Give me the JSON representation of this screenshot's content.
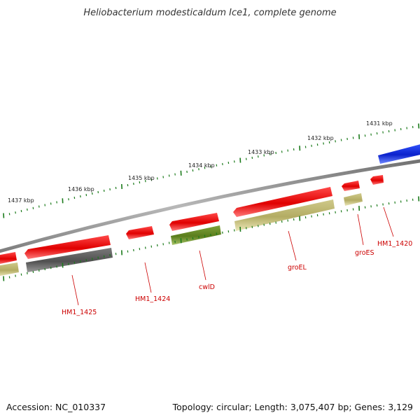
{
  "title": "Heliobacterium modesticaldum Ice1, complete genome",
  "footer": {
    "accession": "Accession: NC_010337",
    "summary": "Topology: circular; Length: 3,075,407 bp; Genes: 3,129"
  },
  "kbp_labels": [
    "1431 kbp",
    "1432 kbp",
    "1433 kbp",
    "1434 kbp",
    "1435 kbp",
    "1436 kbp",
    "1437 kbp"
  ],
  "gene_labels": [
    "HM1_1420",
    "groES",
    "groEL",
    "cwlD",
    "HM1_1424",
    "HM1_1425"
  ],
  "colors": {
    "backbone": "#8a8a8a",
    "tick": "#1a7a1a",
    "red_gene": "#ee1111",
    "blue_gene": "#1133dd",
    "khaki_gene": "#bdb76b",
    "olive_gene": "#6b8e23",
    "gray_gene": "#666666",
    "label_line": "#cc0000"
  }
}
